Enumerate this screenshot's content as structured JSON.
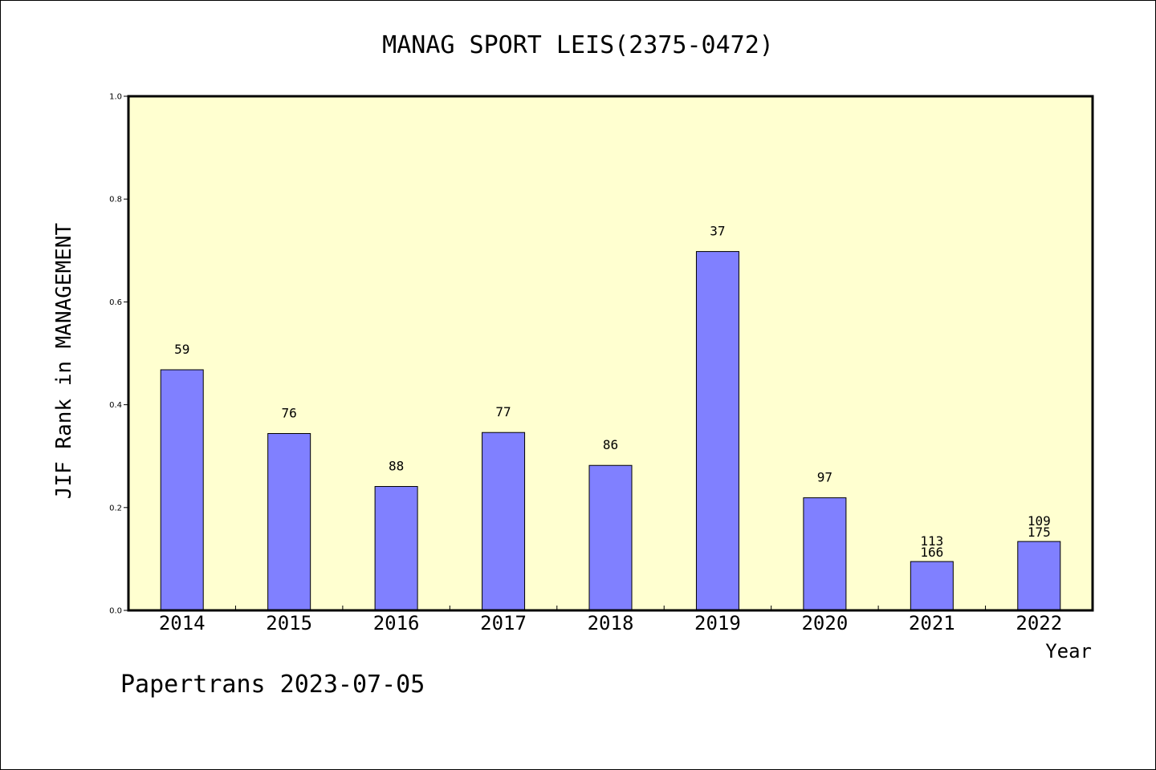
{
  "chart_data": {
    "type": "bar",
    "title": "MANAG SPORT LEIS(2375-0472)",
    "xlabel": "Year",
    "ylabel": "JIF Rank in MANAGEMENT",
    "ylim": [
      0,
      1.0
    ],
    "yticks": [
      "0.0",
      "0.2",
      "0.4",
      "0.6",
      "0.8",
      "1.0"
    ],
    "grid": false,
    "categories": [
      "2014",
      "2015",
      "2016",
      "2017",
      "2018",
      "2019",
      "2020",
      "2021",
      "2022"
    ],
    "values": [
      0.468,
      0.344,
      0.241,
      0.346,
      0.282,
      0.698,
      0.219,
      0.095,
      0.134
    ],
    "bar_labels": [
      [
        "59"
      ],
      [
        "76"
      ],
      [
        "88"
      ],
      [
        "77"
      ],
      [
        "86"
      ],
      [
        "37"
      ],
      [
        "97"
      ],
      [
        "113",
        "166"
      ],
      [
        "109",
        "175"
      ]
    ],
    "colors": {
      "bar": "#8080ff",
      "plot_bg": "#ffffd0",
      "axis": "#000000"
    }
  },
  "footer": {
    "text": "Papertrans 2023-07-05"
  }
}
